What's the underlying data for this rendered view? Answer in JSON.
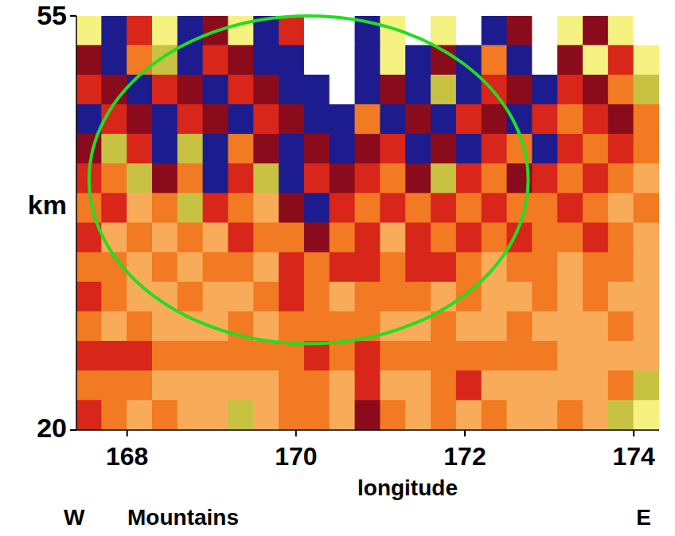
{
  "chart_data": {
    "type": "heatmap",
    "xlabel": "longitude",
    "ylabel": "km",
    "annotations": [
      "W",
      "Mountains",
      "E"
    ],
    "xlim": [
      167.4,
      174.3
    ],
    "ylim": [
      20,
      55
    ],
    "xticks": [
      168,
      170,
      172,
      174
    ],
    "yticks": [
      20,
      55
    ],
    "zlim": [
      0,
      7
    ],
    "colors": [
      "#ffffff",
      "#1c1c8e",
      "#8a0c1c",
      "#d8261a",
      "#f27a22",
      "#f8ac5a",
      "#c8c242",
      "#f6f282"
    ],
    "highlight": {
      "color": "#22dd22",
      "x": [
        167.55,
        172.75
      ],
      "y": [
        27.3,
        55
      ]
    },
    "x": [
      167.55,
      167.85,
      168.15,
      168.45,
      168.75,
      169.05,
      169.35,
      169.65,
      169.95,
      170.25,
      170.55,
      170.85,
      171.15,
      171.45,
      171.75,
      172.05,
      172.35,
      172.65,
      172.95,
      173.25,
      173.55,
      173.85,
      174.15
    ],
    "y": [
      53.75,
      51.25,
      48.75,
      46.25,
      43.75,
      41.25,
      38.75,
      36.25,
      33.75,
      31.25,
      28.75,
      26.25,
      23.75,
      21.25
    ],
    "cells": [
      [
        7,
        1,
        3,
        7,
        1,
        2,
        7,
        1,
        3,
        0,
        0,
        1,
        7,
        0,
        7,
        0,
        1,
        2,
        0,
        7,
        2,
        7,
        0
      ],
      [
        2,
        1,
        4,
        6,
        1,
        3,
        2,
        1,
        1,
        0,
        0,
        1,
        7,
        1,
        2,
        1,
        4,
        1,
        0,
        2,
        7,
        3,
        7
      ],
      [
        3,
        2,
        1,
        3,
        2,
        1,
        3,
        2,
        1,
        1,
        0,
        1,
        2,
        1,
        6,
        1,
        3,
        2,
        1,
        3,
        2,
        4,
        6
      ],
      [
        1,
        3,
        2,
        1,
        3,
        2,
        1,
        3,
        2,
        1,
        1,
        4,
        1,
        2,
        1,
        3,
        2,
        1,
        3,
        4,
        3,
        2,
        4
      ],
      [
        2,
        6,
        3,
        1,
        6,
        1,
        4,
        2,
        1,
        2,
        1,
        2,
        3,
        1,
        2,
        1,
        3,
        4,
        1,
        3,
        4,
        3,
        4
      ],
      [
        3,
        4,
        6,
        2,
        4,
        1,
        3,
        6,
        1,
        3,
        2,
        3,
        4,
        2,
        6,
        3,
        4,
        2,
        3,
        4,
        3,
        4,
        5
      ],
      [
        4,
        3,
        5,
        4,
        6,
        3,
        4,
        5,
        2,
        1,
        3,
        4,
        3,
        4,
        3,
        4,
        3,
        4,
        4,
        3,
        4,
        5,
        4
      ],
      [
        3,
        5,
        4,
        5,
        4,
        5,
        3,
        4,
        4,
        2,
        4,
        3,
        5,
        3,
        4,
        3,
        4,
        3,
        4,
        4,
        3,
        4,
        5
      ],
      [
        4,
        4,
        5,
        4,
        5,
        4,
        4,
        5,
        3,
        4,
        3,
        3,
        4,
        3,
        3,
        4,
        5,
        4,
        4,
        5,
        4,
        4,
        5
      ],
      [
        3,
        4,
        5,
        5,
        4,
        5,
        5,
        4,
        3,
        4,
        5,
        4,
        4,
        4,
        5,
        4,
        5,
        5,
        4,
        5,
        4,
        5,
        5
      ],
      [
        4,
        5,
        4,
        5,
        5,
        5,
        4,
        5,
        4,
        4,
        4,
        4,
        5,
        5,
        4,
        5,
        5,
        4,
        5,
        5,
        5,
        4,
        5
      ],
      [
        3,
        3,
        3,
        4,
        4,
        4,
        4,
        4,
        4,
        3,
        4,
        3,
        4,
        4,
        4,
        4,
        4,
        4,
        4,
        5,
        5,
        5,
        5
      ],
      [
        4,
        4,
        4,
        5,
        5,
        5,
        5,
        5,
        4,
        4,
        5,
        3,
        5,
        5,
        4,
        3,
        5,
        5,
        5,
        5,
        5,
        4,
        6
      ],
      [
        3,
        4,
        5,
        4,
        5,
        5,
        6,
        5,
        4,
        4,
        5,
        2,
        4,
        5,
        4,
        5,
        4,
        5,
        5,
        4,
        5,
        6,
        7
      ]
    ]
  }
}
